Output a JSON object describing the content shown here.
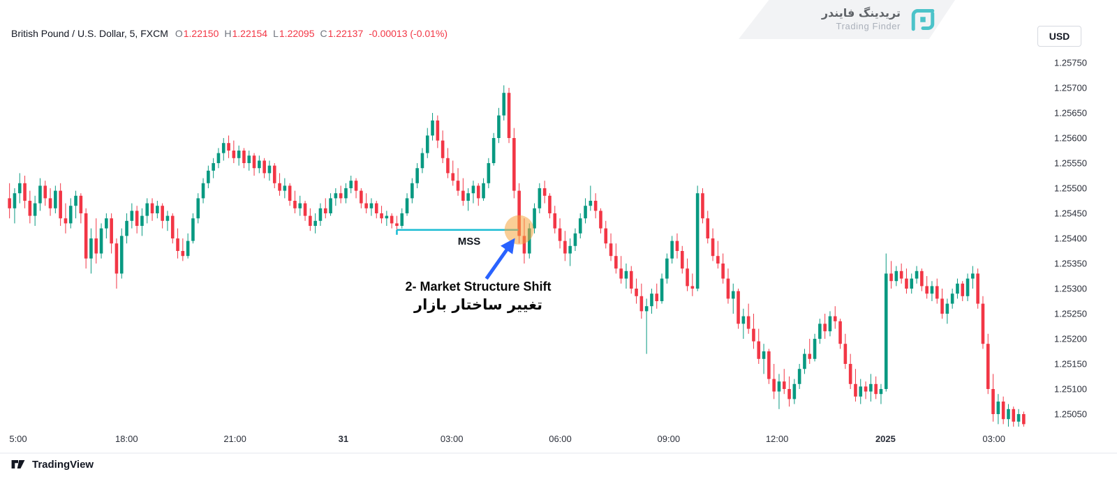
{
  "header": {
    "symbol": "British Pound / U.S. Dollar, 5, FXCM",
    "ohlc": {
      "open_label": "O",
      "open": "1.22150",
      "high_label": "H",
      "high": "1.22154",
      "low_label": "L",
      "low": "1.22095",
      "close_label": "C",
      "close": "1.22137",
      "change": "-0.00013 (-0.01%)"
    },
    "value_color": "#f23645"
  },
  "branding": {
    "name_fa": "تریدینگ فایندر",
    "name_en": "Trading Finder",
    "logo_color": "#4cc3c9"
  },
  "toolbar": {
    "currency_label": "USD"
  },
  "footer": {
    "brand": "TradingView"
  },
  "annotations": {
    "mss_label": "MSS",
    "shift_label_en": "2- Market Structure Shift",
    "shift_label_fa": "تغییر ساختار بازار",
    "line_color": "#1cbdd4",
    "circle_color": "#f6a63f",
    "arrow_color": "#2962ff"
  },
  "chart_data": {
    "type": "candlestick",
    "symbol": "GBP/USD",
    "interval_minutes": 5,
    "exchange": "FXCM",
    "up_color": "#089981",
    "down_color": "#f23645",
    "grid": false,
    "y_axis": {
      "max": 1.2575,
      "min": 1.2505,
      "tick_step": 0.0005,
      "labels": [
        "1.25750",
        "1.25700",
        "1.25650",
        "1.25600",
        "1.25550",
        "1.25500",
        "1.25450",
        "1.25400",
        "1.25350",
        "1.25300",
        "1.25250",
        "1.25200",
        "1.25150",
        "1.25100",
        "1.25050"
      ]
    },
    "x_axis": {
      "labels": [
        {
          "text": "5:00",
          "bold": false
        },
        {
          "text": "18:00",
          "bold": false
        },
        {
          "text": "21:00",
          "bold": false
        },
        {
          "text": "31",
          "bold": true
        },
        {
          "text": "03:00",
          "bold": false
        },
        {
          "text": "06:00",
          "bold": false
        },
        {
          "text": "09:00",
          "bold": false
        },
        {
          "text": "12:00",
          "bold": false
        },
        {
          "text": "2025",
          "bold": true
        },
        {
          "text": "03:00",
          "bold": false
        }
      ]
    },
    "mss_line": {
      "price": 1.25417,
      "start_index": 76,
      "end_index": 99
    },
    "highlight": {
      "candle_index": 100,
      "price": 1.25417,
      "radius": 21
    },
    "price_scale": 100000,
    "candles": [
      [
        125480,
        125510,
        125440,
        125460
      ],
      [
        125460,
        125500,
        125430,
        125490
      ],
      [
        125490,
        125530,
        125470,
        125510
      ],
      [
        125510,
        125525,
        125460,
        125475
      ],
      [
        125475,
        125495,
        125430,
        125445
      ],
      [
        125445,
        125485,
        125425,
        125470
      ],
      [
        125470,
        125520,
        125455,
        125505
      ],
      [
        125505,
        125515,
        125465,
        125480
      ],
      [
        125480,
        125500,
        125445,
        125460
      ],
      [
        125460,
        125505,
        125450,
        125495
      ],
      [
        125495,
        125510,
        125425,
        125440
      ],
      [
        125440,
        125470,
        125410,
        125430
      ],
      [
        125430,
        125480,
        125420,
        125465
      ],
      [
        125465,
        125495,
        125440,
        125485
      ],
      [
        125485,
        125490,
        125430,
        125450
      ],
      [
        125450,
        125460,
        125340,
        125360
      ],
      [
        125360,
        125420,
        125330,
        125400
      ],
      [
        125400,
        125440,
        125350,
        125370
      ],
      [
        125370,
        125430,
        125360,
        125420
      ],
      [
        125420,
        125450,
        125400,
        125440
      ],
      [
        125440,
        125450,
        125370,
        125390
      ],
      [
        125390,
        125400,
        125300,
        125330
      ],
      [
        125330,
        125420,
        125320,
        125405
      ],
      [
        125405,
        125450,
        125390,
        125435
      ],
      [
        125435,
        125470,
        125420,
        125455
      ],
      [
        125455,
        125465,
        125410,
        125425
      ],
      [
        125425,
        125460,
        125405,
        125445
      ],
      [
        125445,
        125480,
        125430,
        125470
      ],
      [
        125470,
        125480,
        125435,
        125450
      ],
      [
        125450,
        125475,
        125440,
        125465
      ],
      [
        125465,
        125470,
        125420,
        125435
      ],
      [
        125435,
        125455,
        125415,
        125445
      ],
      [
        125445,
        125450,
        125390,
        125400
      ],
      [
        125400,
        125420,
        125360,
        125375
      ],
      [
        125375,
        125400,
        125355,
        125365
      ],
      [
        125365,
        125410,
        125360,
        125395
      ],
      [
        125395,
        125450,
        125390,
        125440
      ],
      [
        125440,
        125490,
        125430,
        125480
      ],
      [
        125480,
        125520,
        125470,
        125510
      ],
      [
        125510,
        125545,
        125500,
        125535
      ],
      [
        125535,
        125560,
        125520,
        125550
      ],
      [
        125550,
        125580,
        125540,
        125570
      ],
      [
        125570,
        125600,
        125555,
        125590
      ],
      [
        125590,
        125605,
        125560,
        125575
      ],
      [
        125575,
        125595,
        125550,
        125560
      ],
      [
        125560,
        125585,
        125545,
        125575
      ],
      [
        125575,
        125580,
        125540,
        125550
      ],
      [
        125550,
        125575,
        125535,
        125565
      ],
      [
        125565,
        125570,
        125525,
        125540
      ],
      [
        125540,
        125565,
        125530,
        125555
      ],
      [
        125555,
        125560,
        125520,
        125530
      ],
      [
        125530,
        125555,
        125515,
        125545
      ],
      [
        125545,
        125550,
        125500,
        125510
      ],
      [
        125510,
        125530,
        125485,
        125495
      ],
      [
        125495,
        125520,
        125480,
        125505
      ],
      [
        125505,
        125510,
        125465,
        125475
      ],
      [
        125475,
        125495,
        125450,
        125460
      ],
      [
        125460,
        125485,
        125445,
        125470
      ],
      [
        125470,
        125475,
        125435,
        125445
      ],
      [
        125445,
        125460,
        125415,
        125425
      ],
      [
        125425,
        125450,
        125410,
        125435
      ],
      [
        125435,
        125470,
        125425,
        125460
      ],
      [
        125460,
        125480,
        125440,
        125450
      ],
      [
        125450,
        125490,
        125445,
        125480
      ],
      [
        125480,
        125500,
        125465,
        125490
      ],
      [
        125490,
        125505,
        125470,
        125480
      ],
      [
        125480,
        125510,
        125470,
        125500
      ],
      [
        125500,
        125525,
        125490,
        125515
      ],
      [
        125515,
        125520,
        125480,
        125495
      ],
      [
        125495,
        125500,
        125460,
        125470
      ],
      [
        125470,
        125490,
        125450,
        125460
      ],
      [
        125460,
        125480,
        125445,
        125470
      ],
      [
        125470,
        125475,
        125440,
        125450
      ],
      [
        125450,
        125465,
        125430,
        125440
      ],
      [
        125440,
        125455,
        125425,
        125445
      ],
      [
        125445,
        125450,
        125420,
        125430
      ],
      [
        125430,
        125445,
        125417,
        125425
      ],
      [
        125425,
        125460,
        125420,
        125450
      ],
      [
        125450,
        125490,
        125445,
        125480
      ],
      [
        125480,
        125520,
        125470,
        125510
      ],
      [
        125510,
        125550,
        125500,
        125540
      ],
      [
        125540,
        125580,
        125530,
        125570
      ],
      [
        125570,
        125620,
        125560,
        125605
      ],
      [
        125605,
        125650,
        125595,
        125635
      ],
      [
        125635,
        125645,
        125580,
        125595
      ],
      [
        125595,
        125615,
        125550,
        125560
      ],
      [
        125560,
        125580,
        125520,
        125530
      ],
      [
        125530,
        125555,
        125505,
        125515
      ],
      [
        125515,
        125540,
        125485,
        125495
      ],
      [
        125495,
        125520,
        125465,
        125475
      ],
      [
        125475,
        125500,
        125455,
        125490
      ],
      [
        125490,
        125515,
        125470,
        125505
      ],
      [
        125505,
        125510,
        125465,
        125480
      ],
      [
        125480,
        125520,
        125475,
        125510
      ],
      [
        125510,
        125560,
        125500,
        125550
      ],
      [
        125550,
        125610,
        125545,
        125600
      ],
      [
        125600,
        125660,
        125590,
        125645
      ],
      [
        125645,
        125705,
        125635,
        125690
      ],
      [
        125690,
        125700,
        125590,
        125600
      ],
      [
        125600,
        125620,
        125480,
        125495
      ],
      [
        125495,
        125510,
        125390,
        125405
      ],
      [
        125405,
        125440,
        125350,
        125370
      ],
      [
        125370,
        125430,
        125360,
        125420
      ],
      [
        125420,
        125470,
        125410,
        125460
      ],
      [
        125460,
        125510,
        125450,
        125500
      ],
      [
        125500,
        125515,
        125470,
        125485
      ],
      [
        125485,
        125490,
        125440,
        125450
      ],
      [
        125450,
        125465,
        125410,
        125420
      ],
      [
        125420,
        125440,
        125380,
        125395
      ],
      [
        125395,
        125415,
        125355,
        125370
      ],
      [
        125370,
        125400,
        125345,
        125385
      ],
      [
        125385,
        125420,
        125375,
        125410
      ],
      [
        125410,
        125450,
        125400,
        125440
      ],
      [
        125440,
        125480,
        125430,
        125465
      ],
      [
        125465,
        125505,
        125455,
        125475
      ],
      [
        125475,
        125490,
        125440,
        125455
      ],
      [
        125455,
        125460,
        125410,
        125420
      ],
      [
        125420,
        125435,
        125380,
        125390
      ],
      [
        125390,
        125410,
        125355,
        125365
      ],
      [
        125365,
        125390,
        125330,
        125340
      ],
      [
        125340,
        125365,
        125310,
        125320
      ],
      [
        125320,
        125350,
        125300,
        125335
      ],
      [
        125335,
        125345,
        125290,
        125300
      ],
      [
        125300,
        125320,
        125270,
        125285
      ],
      [
        125285,
        125310,
        125240,
        125255
      ],
      [
        125255,
        125280,
        125170,
        125265
      ],
      [
        125265,
        125300,
        125250,
        125290
      ],
      [
        125290,
        125310,
        125260,
        125275
      ],
      [
        125275,
        125330,
        125270,
        125320
      ],
      [
        125320,
        125370,
        125310,
        125360
      ],
      [
        125360,
        125405,
        125350,
        125395
      ],
      [
        125395,
        125410,
        125360,
        125375
      ],
      [
        125375,
        125385,
        125330,
        125340
      ],
      [
        125340,
        125360,
        125295,
        125305
      ],
      [
        125305,
        125330,
        125285,
        125300
      ],
      [
        125300,
        125505,
        125295,
        125490
      ],
      [
        125490,
        125500,
        125430,
        125440
      ],
      [
        125440,
        125455,
        125390,
        125400
      ],
      [
        125400,
        125420,
        125355,
        125365
      ],
      [
        125365,
        125395,
        125340,
        125350
      ],
      [
        125350,
        125370,
        125310,
        125320
      ],
      [
        125320,
        125340,
        125270,
        125280
      ],
      [
        125280,
        125310,
        125250,
        125295
      ],
      [
        125295,
        125300,
        125220,
        125230
      ],
      [
        125230,
        125260,
        125200,
        125245
      ],
      [
        125245,
        125270,
        125210,
        125220
      ],
      [
        125220,
        125250,
        125180,
        125195
      ],
      [
        125195,
        125220,
        125150,
        125160
      ],
      [
        125160,
        125190,
        125130,
        125175
      ],
      [
        125175,
        125180,
        125110,
        125120
      ],
      [
        125120,
        125150,
        125080,
        125095
      ],
      [
        125095,
        125130,
        125060,
        125115
      ],
      [
        125115,
        125140,
        125090,
        125100
      ],
      [
        125100,
        125125,
        125065,
        125080
      ],
      [
        125080,
        125120,
        125070,
        125110
      ],
      [
        125110,
        125150,
        125100,
        125140
      ],
      [
        125140,
        125180,
        125130,
        125170
      ],
      [
        125170,
        125200,
        125150,
        125160
      ],
      [
        125160,
        125210,
        125155,
        125200
      ],
      [
        125200,
        125240,
        125190,
        125230
      ],
      [
        125230,
        125250,
        125200,
        125215
      ],
      [
        125215,
        125255,
        125205,
        125245
      ],
      [
        125245,
        125265,
        125220,
        125235
      ],
      [
        125235,
        125240,
        125180,
        125190
      ],
      [
        125190,
        125210,
        125140,
        125150
      ],
      [
        125150,
        125170,
        125100,
        125110
      ],
      [
        125110,
        125140,
        125075,
        125085
      ],
      [
        125085,
        125120,
        125070,
        125105
      ],
      [
        125105,
        125115,
        125080,
        125095
      ],
      [
        125095,
        125130,
        125075,
        125110
      ],
      [
        125110,
        125125,
        125080,
        125090
      ],
      [
        125090,
        125110,
        125070,
        125100
      ],
      [
        125100,
        125370,
        125095,
        125330
      ],
      [
        125330,
        125355,
        125300,
        125315
      ],
      [
        125315,
        125345,
        125305,
        125335
      ],
      [
        125335,
        125350,
        125310,
        125320
      ],
      [
        125320,
        125340,
        125290,
        125300
      ],
      [
        125300,
        125330,
        125290,
        125320
      ],
      [
        125320,
        125345,
        125310,
        125335
      ],
      [
        125335,
        125340,
        125295,
        125305
      ],
      [
        125305,
        125325,
        125280,
        125290
      ],
      [
        125290,
        125315,
        125275,
        125305
      ],
      [
        125305,
        125320,
        125270,
        125280
      ],
      [
        125280,
        125300,
        125240,
        125250
      ],
      [
        125250,
        125280,
        125230,
        125270
      ],
      [
        125270,
        125300,
        125260,
        125290
      ],
      [
        125290,
        125320,
        125280,
        125310
      ],
      [
        125310,
        125315,
        125275,
        125285
      ],
      [
        125285,
        125330,
        125275,
        125320
      ],
      [
        125320,
        125345,
        125300,
        125330
      ],
      [
        125330,
        125340,
        125260,
        125270
      ],
      [
        125270,
        125285,
        125180,
        125190
      ],
      [
        125190,
        125210,
        125090,
        125100
      ],
      [
        125100,
        125130,
        125035,
        125050
      ],
      [
        125050,
        125090,
        125030,
        125075
      ],
      [
        125075,
        125085,
        125030,
        125040
      ],
      [
        125040,
        125070,
        125025,
        125060
      ],
      [
        125060,
        125065,
        125025,
        125035
      ],
      [
        125035,
        125060,
        125025,
        125050
      ],
      [
        125050,
        125055,
        125025,
        125030
      ]
    ]
  }
}
